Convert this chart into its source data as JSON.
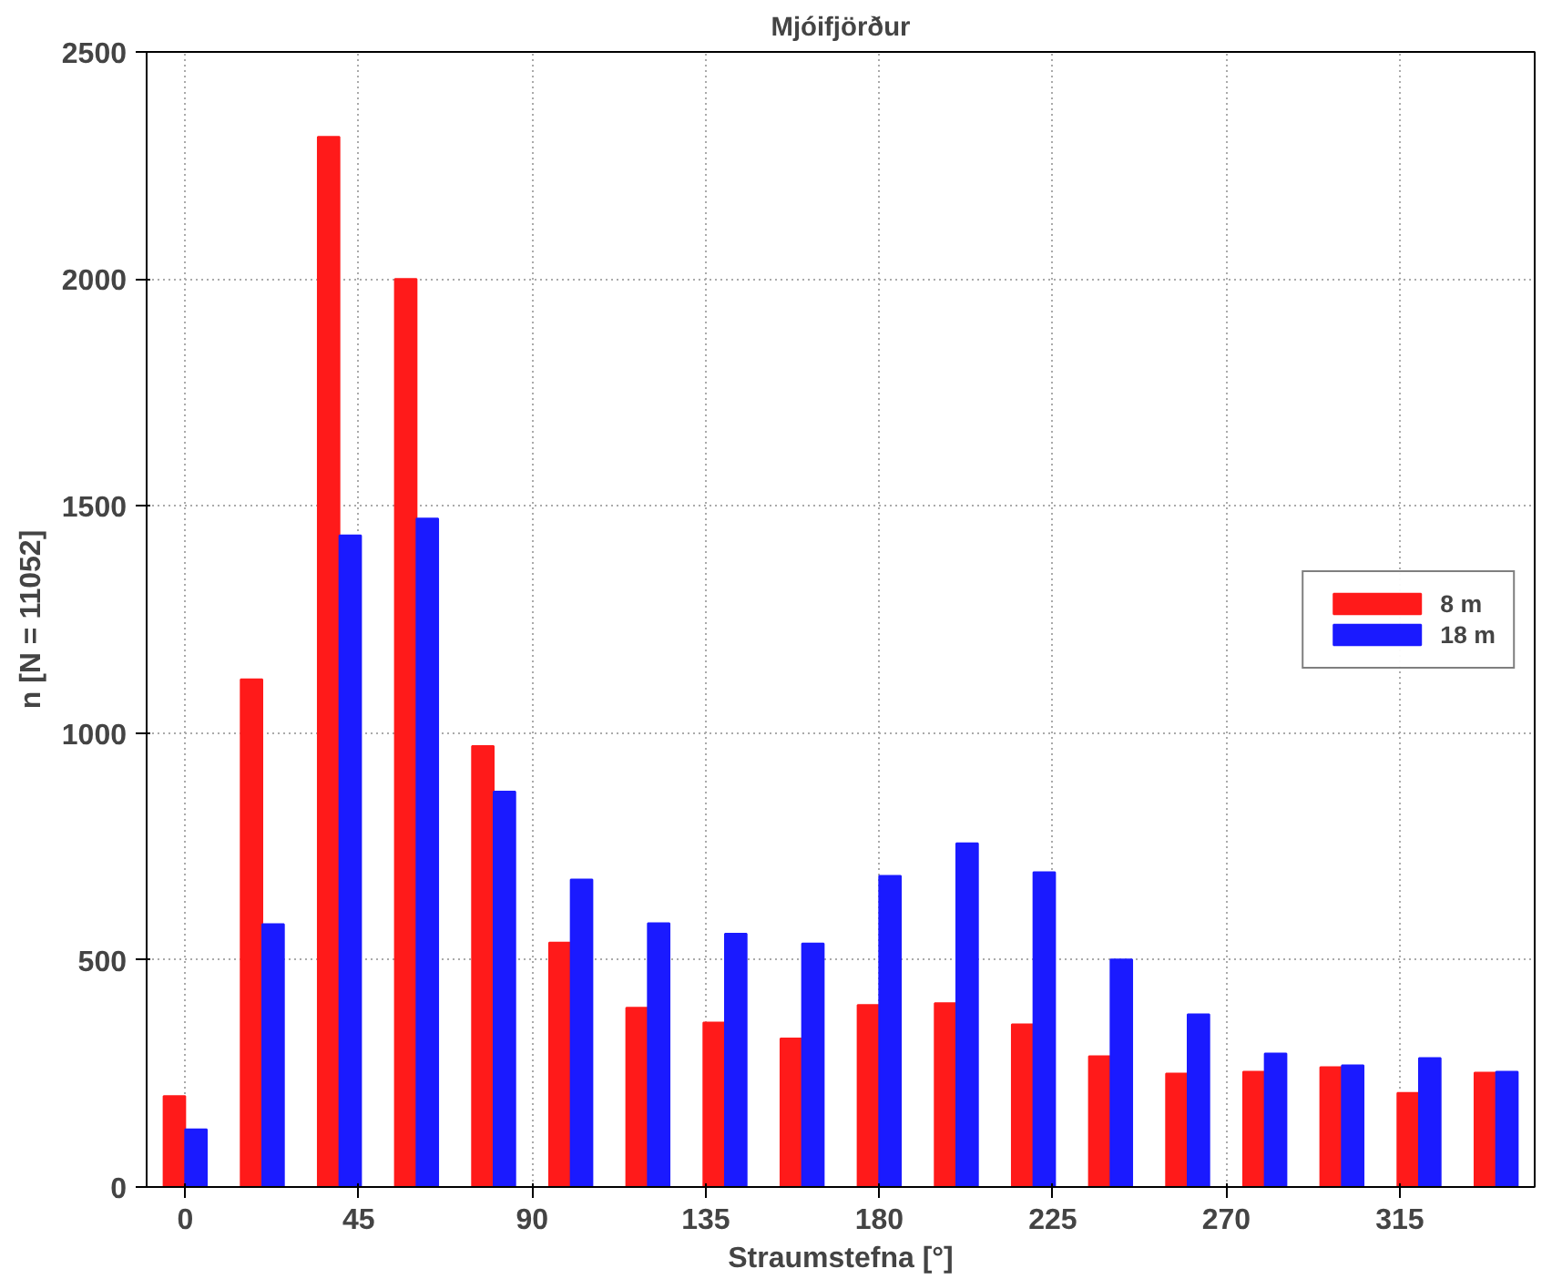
{
  "chart_data": {
    "type": "bar",
    "title": "Mjóifjörður",
    "xlabel": "Straumstefna [°]",
    "ylabel": "n [N = 11052]",
    "x": [
      0,
      20,
      40,
      60,
      80,
      100,
      120,
      140,
      160,
      180,
      200,
      220,
      240,
      260,
      280,
      300,
      320,
      340
    ],
    "series": [
      {
        "name": "8 m",
        "color": "#ff1a1a",
        "values": [
          200,
          1118,
          2313,
          2000,
          971,
          538,
          395,
          362,
          327,
          401,
          405,
          358,
          288,
          250,
          254,
          264,
          207,
          252
        ]
      },
      {
        "name": "18 m",
        "color": "#1a1aff",
        "values": [
          127,
          579,
          1435,
          1472,
          871,
          677,
          581,
          558,
          536,
          685,
          757,
          693,
          501,
          380,
          294,
          268,
          284,
          254
        ]
      }
    ],
    "xlim": [
      -10,
      350
    ],
    "ylim": [
      0,
      2500
    ],
    "xticks": [
      0,
      45,
      90,
      135,
      180,
      225,
      270,
      315
    ],
    "yticks": [
      0,
      500,
      1000,
      1500,
      2000,
      2500
    ],
    "grid": true,
    "legend": "right"
  }
}
